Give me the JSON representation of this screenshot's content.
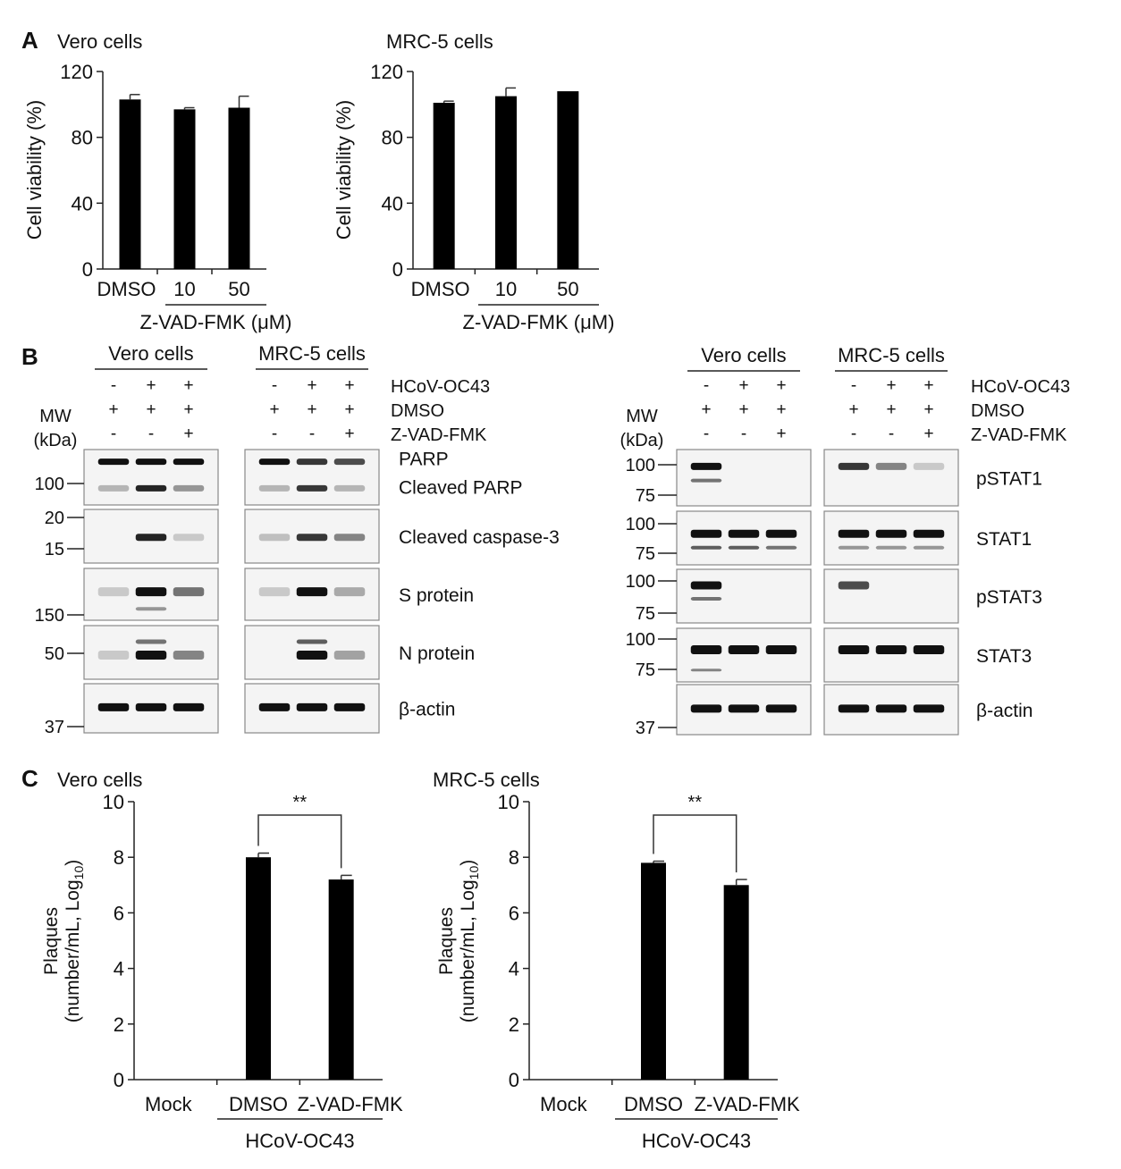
{
  "panels": {
    "a": "A",
    "b": "B",
    "c": "C"
  },
  "chart_data": [
    {
      "type": "bar",
      "title": "Vero cells",
      "ylabel": "Cell viability (%)",
      "categories": [
        "DMSO",
        "10",
        "50"
      ],
      "group_label": "Z-VAD-FMK (μM)",
      "values": [
        103,
        97,
        98
      ],
      "errors": [
        3,
        1,
        7
      ],
      "ylim": [
        0,
        120
      ],
      "yticks": [
        "0",
        "40",
        "80",
        "120"
      ]
    },
    {
      "type": "bar",
      "title": "MRC-5 cells",
      "ylabel": "Cell  viability (%)",
      "categories": [
        "DMSO",
        "10",
        "50"
      ],
      "group_label": "Z-VAD-FMK (μM)",
      "values": [
        101,
        105,
        108
      ],
      "errors": [
        1,
        5,
        0
      ],
      "ylim": [
        0,
        120
      ],
      "yticks": [
        "0",
        "40",
        "80",
        "120"
      ]
    },
    {
      "type": "bar",
      "title": "Vero cells",
      "ylabel_line1": "Plaques",
      "ylabel_line2": "(number/mL, Log",
      "ylabel_sub": "10",
      "ylabel_close": ")",
      "categories": [
        "Mock",
        "DMSO",
        "Z-VAD-FMK"
      ],
      "group_label": "HCoV-OC43",
      "values": [
        0,
        8.0,
        7.2
      ],
      "errors": [
        0,
        0.15,
        0.15
      ],
      "ylim": [
        0,
        10
      ],
      "yticks": [
        "0",
        "2",
        "4",
        "6",
        "8",
        "10"
      ],
      "significance": "**"
    },
    {
      "type": "bar",
      "title": "MRC-5 cells",
      "ylabel_line1": "Plaques",
      "ylabel_line2": "(number/mL, Log",
      "ylabel_sub": "10",
      "ylabel_close": ")",
      "categories": [
        "Mock",
        "DMSO",
        "Z-VAD-FMK"
      ],
      "group_label": "HCoV-OC43",
      "values": [
        0,
        7.8,
        7.0
      ],
      "errors": [
        0,
        0.06,
        0.2
      ],
      "ylim": [
        0,
        10
      ],
      "yticks": [
        "0",
        "2",
        "4",
        "6",
        "8",
        "10"
      ],
      "significance": "**"
    }
  ],
  "western": {
    "left": {
      "groups": [
        "Vero cells",
        "MRC-5 cells"
      ],
      "conditions": [
        {
          "label": "HCoV-OC43",
          "signs": [
            "-",
            "+",
            "+",
            "-",
            "+",
            "+"
          ]
        },
        {
          "label": "DMSO",
          "signs": [
            "+",
            "+",
            "+",
            "+",
            "+",
            "+"
          ]
        },
        {
          "label": "Z-VAD-FMK",
          "signs": [
            "-",
            "-",
            "+",
            "-",
            "-",
            "+"
          ]
        }
      ],
      "mw_label": "MW",
      "mw_unit": "(kDa)",
      "rows": [
        {
          "labels": [
            "PARP",
            "Cleaved PARP"
          ],
          "markers": [
            "100"
          ]
        },
        {
          "labels": [
            "Cleaved caspase-3"
          ],
          "markers": [
            "20",
            "15"
          ]
        },
        {
          "labels": [
            "S protein"
          ],
          "markers": [
            "150"
          ]
        },
        {
          "labels": [
            "N protein"
          ],
          "markers": [
            "50"
          ]
        },
        {
          "labels": [
            "β-actin"
          ],
          "markers": [
            "37"
          ]
        }
      ]
    },
    "right": {
      "groups": [
        "Vero cells",
        "MRC-5 cells"
      ],
      "conditions": [
        {
          "label": "HCoV-OC43",
          "signs": [
            "-",
            "+",
            "+",
            "-",
            "+",
            "+"
          ]
        },
        {
          "label": "DMSO",
          "signs": [
            "+",
            "+",
            "+",
            "+",
            "+",
            "+"
          ]
        },
        {
          "label": "Z-VAD-FMK",
          "signs": [
            "-",
            "-",
            "+",
            "-",
            "-",
            "+"
          ]
        }
      ],
      "mw_label": "MW",
      "mw_unit": "(kDa)",
      "rows": [
        {
          "labels": [
            "pSTAT1"
          ],
          "markers": [
            "100",
            "75"
          ]
        },
        {
          "labels": [
            "STAT1"
          ],
          "markers": [
            "100",
            "75"
          ]
        },
        {
          "labels": [
            "pSTAT3"
          ],
          "markers": [
            "100",
            "75"
          ]
        },
        {
          "labels": [
            "STAT3"
          ],
          "markers": [
            "100",
            "75"
          ]
        },
        {
          "labels": [
            "β-actin"
          ],
          "markers": [
            "37"
          ]
        }
      ]
    }
  }
}
